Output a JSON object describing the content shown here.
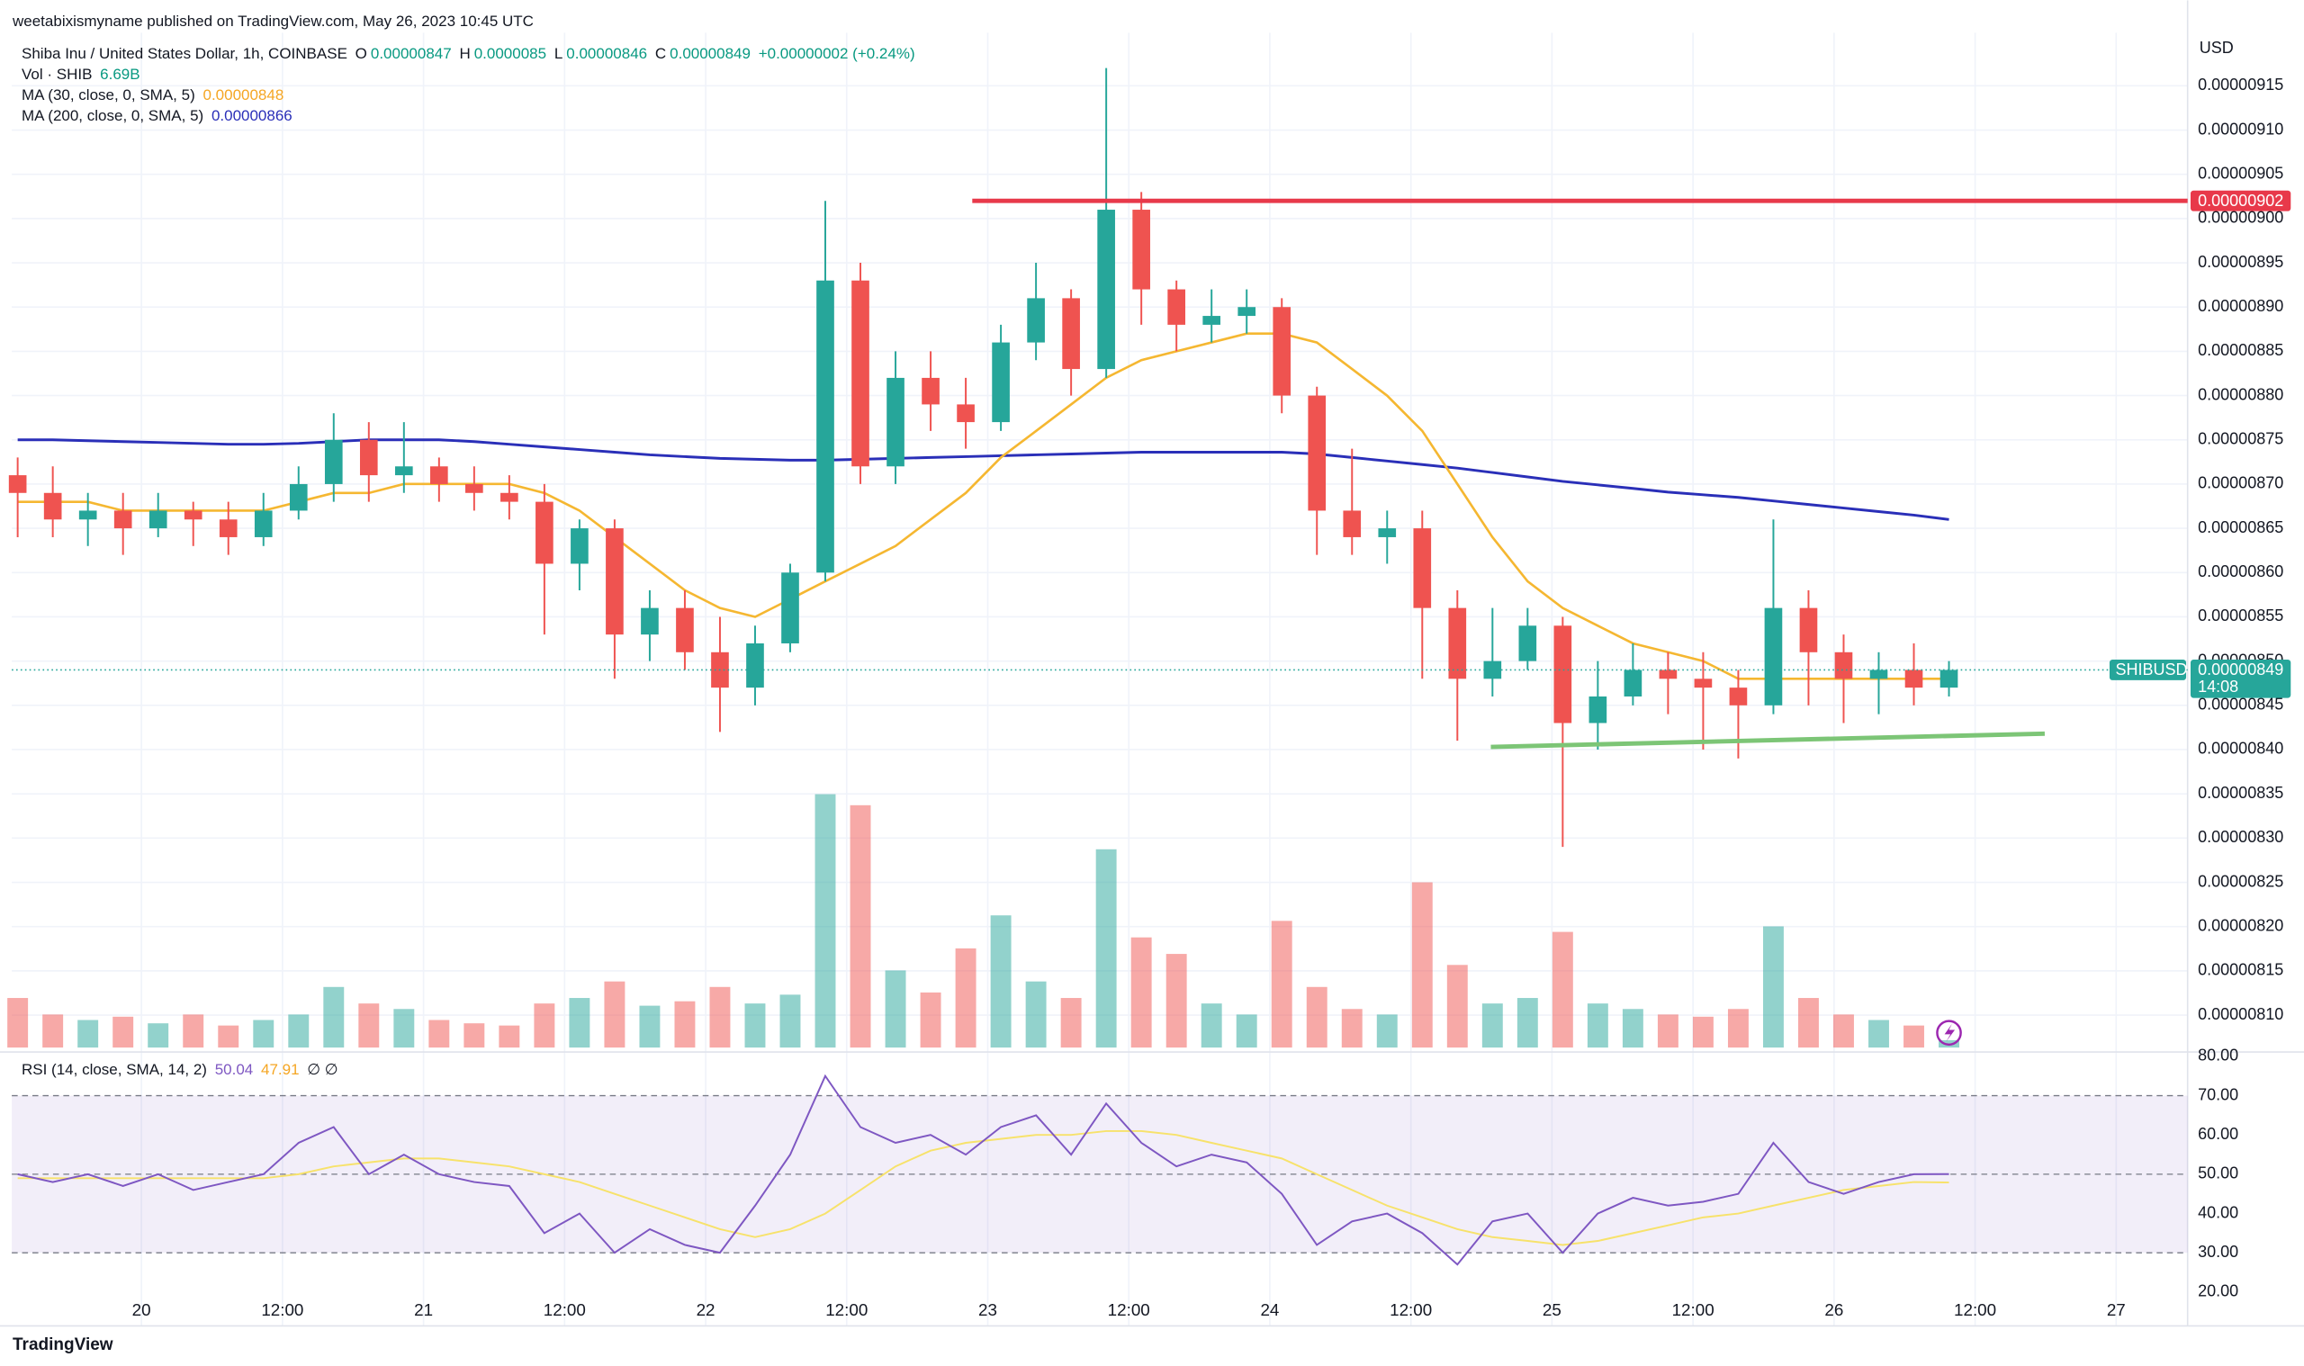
{
  "chart_data": {
    "type": "candlestick",
    "published": "weetabixismyname published on TradingView.com, May 26, 2023 10:45 UTC",
    "title": "Shiba Inu / United States Dollar, 1h, COINBASE",
    "ohlc_labels": [
      "O",
      "H",
      "L",
      "C"
    ],
    "change": "+0.00000002 (+0.24%)",
    "currency": "USD",
    "symbol": "SHIBUSD",
    "countdown": "14:08",
    "logo": "TradingView",
    "colors": {
      "up": "#26a69a",
      "down": "#ef5350",
      "ma30": "#f5b731",
      "ma200": "#2a2fb8",
      "rsi": "#7e57c2",
      "rsi_ma": "#f7e26b",
      "resistance": "#e8394a",
      "support": "#7cc576"
    },
    "candles": [
      [
        8.71e-06,
        8.73e-06,
        8.64e-06,
        8.69e-06
      ],
      [
        8.69e-06,
        8.72e-06,
        8.64e-06,
        8.66e-06
      ],
      [
        8.66e-06,
        8.69e-06,
        8.63e-06,
        8.67e-06
      ],
      [
        8.67e-06,
        8.69e-06,
        8.62e-06,
        8.65e-06
      ],
      [
        8.65e-06,
        8.69e-06,
        8.64e-06,
        8.67e-06
      ],
      [
        8.67e-06,
        8.68e-06,
        8.63e-06,
        8.66e-06
      ],
      [
        8.66e-06,
        8.68e-06,
        8.62e-06,
        8.64e-06
      ],
      [
        8.64e-06,
        8.69e-06,
        8.63e-06,
        8.67e-06
      ],
      [
        8.67e-06,
        8.72e-06,
        8.66e-06,
        8.7e-06
      ],
      [
        8.7e-06,
        8.78e-06,
        8.68e-06,
        8.75e-06
      ],
      [
        8.75e-06,
        8.77e-06,
        8.68e-06,
        8.71e-06
      ],
      [
        8.71e-06,
        8.77e-06,
        8.69e-06,
        8.72e-06
      ],
      [
        8.72e-06,
        8.73e-06,
        8.68e-06,
        8.7e-06
      ],
      [
        8.7e-06,
        8.72e-06,
        8.67e-06,
        8.69e-06
      ],
      [
        8.69e-06,
        8.71e-06,
        8.66e-06,
        8.68e-06
      ],
      [
        8.68e-06,
        8.7e-06,
        8.53e-06,
        8.61e-06
      ],
      [
        8.61e-06,
        8.66e-06,
        8.58e-06,
        8.65e-06
      ],
      [
        8.65e-06,
        8.66e-06,
        8.48e-06,
        8.53e-06
      ],
      [
        8.53e-06,
        8.58e-06,
        8.5e-06,
        8.56e-06
      ],
      [
        8.56e-06,
        8.58e-06,
        8.49e-06,
        8.51e-06
      ],
      [
        8.51e-06,
        8.55e-06,
        8.42e-06,
        8.47e-06
      ],
      [
        8.47e-06,
        8.54e-06,
        8.45e-06,
        8.52e-06
      ],
      [
        8.52e-06,
        8.61e-06,
        8.51e-06,
        8.6e-06
      ],
      [
        8.6e-06,
        9.02e-06,
        8.59e-06,
        8.93e-06
      ],
      [
        8.93e-06,
        8.95e-06,
        8.7e-06,
        8.72e-06
      ],
      [
        8.72e-06,
        8.85e-06,
        8.7e-06,
        8.82e-06
      ],
      [
        8.82e-06,
        8.85e-06,
        8.76e-06,
        8.79e-06
      ],
      [
        8.79e-06,
        8.82e-06,
        8.74e-06,
        8.77e-06
      ],
      [
        8.77e-06,
        8.88e-06,
        8.76e-06,
        8.86e-06
      ],
      [
        8.86e-06,
        8.95e-06,
        8.84e-06,
        8.91e-06
      ],
      [
        8.91e-06,
        8.92e-06,
        8.8e-06,
        8.83e-06
      ],
      [
        8.83e-06,
        9.17e-06,
        8.82e-06,
        9.01e-06
      ],
      [
        9.01e-06,
        9.03e-06,
        8.88e-06,
        8.92e-06
      ],
      [
        8.92e-06,
        8.93e-06,
        8.85e-06,
        8.88e-06
      ],
      [
        8.88e-06,
        8.92e-06,
        8.86e-06,
        8.89e-06
      ],
      [
        8.89e-06,
        8.92e-06,
        8.87e-06,
        8.9e-06
      ],
      [
        8.9e-06,
        8.91e-06,
        8.78e-06,
        8.8e-06
      ],
      [
        8.8e-06,
        8.81e-06,
        8.62e-06,
        8.67e-06
      ],
      [
        8.67e-06,
        8.74e-06,
        8.62e-06,
        8.64e-06
      ],
      [
        8.64e-06,
        8.67e-06,
        8.61e-06,
        8.65e-06
      ],
      [
        8.65e-06,
        8.67e-06,
        8.48e-06,
        8.56e-06
      ],
      [
        8.56e-06,
        8.58e-06,
        8.41e-06,
        8.48e-06
      ],
      [
        8.48e-06,
        8.56e-06,
        8.46e-06,
        8.5e-06
      ],
      [
        8.5e-06,
        8.56e-06,
        8.49e-06,
        8.54e-06
      ],
      [
        8.54e-06,
        8.55e-06,
        8.29e-06,
        8.43e-06
      ],
      [
        8.43e-06,
        8.5e-06,
        8.4e-06,
        8.46e-06
      ],
      [
        8.46e-06,
        8.52e-06,
        8.45e-06,
        8.49e-06
      ],
      [
        8.49e-06,
        8.51e-06,
        8.44e-06,
        8.48e-06
      ],
      [
        8.48e-06,
        8.51e-06,
        8.4e-06,
        8.47e-06
      ],
      [
        8.47e-06,
        8.49e-06,
        8.39e-06,
        8.45e-06
      ],
      [
        8.45e-06,
        8.66e-06,
        8.44e-06,
        8.56e-06
      ],
      [
        8.56e-06,
        8.58e-06,
        8.45e-06,
        8.51e-06
      ],
      [
        8.51e-06,
        8.53e-06,
        8.43e-06,
        8.48e-06
      ],
      [
        8.48e-06,
        8.51e-06,
        8.44e-06,
        8.49e-06
      ],
      [
        8.49e-06,
        8.52e-06,
        8.45e-06,
        8.47e-06
      ],
      [
        8.47e-06,
        8.5e-06,
        8.46e-06,
        8.49e-06
      ]
    ],
    "volume": {
      "name": "Vol · SHIB",
      "values": [
        45,
        30,
        25,
        28,
        22,
        30,
        20,
        25,
        30,
        55,
        40,
        35,
        25,
        22,
        20,
        40,
        45,
        60,
        38,
        42,
        55,
        40,
        48,
        230,
        220,
        70,
        50,
        90,
        120,
        60,
        45,
        180,
        100,
        85,
        40,
        30,
        115,
        55,
        35,
        30,
        150,
        75,
        40,
        45,
        105,
        40,
        35,
        30,
        28,
        35,
        110,
        45,
        30,
        25,
        20,
        6.69
      ],
      "value_labels": {
        "55": "6.69B"
      }
    },
    "ma30": {
      "name": "MA (30, close, 0, SMA, 5)",
      "values": [
        8.68e-06,
        8.68e-06,
        8.68e-06,
        8.67e-06,
        8.67e-06,
        8.67e-06,
        8.67e-06,
        8.67e-06,
        8.68e-06,
        8.69e-06,
        8.69e-06,
        8.7e-06,
        8.7e-06,
        8.7e-06,
        8.7e-06,
        8.69e-06,
        8.67e-06,
        8.64e-06,
        8.61e-06,
        8.58e-06,
        8.56e-06,
        8.55e-06,
        8.57e-06,
        8.59e-06,
        8.61e-06,
        8.63e-06,
        8.66e-06,
        8.69e-06,
        8.73e-06,
        8.76e-06,
        8.79e-06,
        8.82e-06,
        8.84e-06,
        8.85e-06,
        8.86e-06,
        8.87e-06,
        8.87e-06,
        8.86e-06,
        8.83e-06,
        8.8e-06,
        8.76e-06,
        8.7e-06,
        8.64e-06,
        8.59e-06,
        8.56e-06,
        8.54e-06,
        8.52e-06,
        8.51e-06,
        8.5e-06,
        8.48e-06,
        8.48e-06,
        8.48e-06,
        8.48e-06,
        8.48e-06,
        8.48e-06,
        8.48e-06
      ]
    },
    "ma200": {
      "name": "MA (200, close, 0, SMA, 5)",
      "values": [
        8.75e-06,
        8.75e-06,
        8.749e-06,
        8.748e-06,
        8.747e-06,
        8.746e-06,
        8.745e-06,
        8.745e-06,
        8.746e-06,
        8.748e-06,
        8.75e-06,
        8.75e-06,
        8.75e-06,
        8.748e-06,
        8.745e-06,
        8.742e-06,
        8.739e-06,
        8.736e-06,
        8.733e-06,
        8.731e-06,
        8.729e-06,
        8.728e-06,
        8.727e-06,
        8.727e-06,
        8.728e-06,
        8.729e-06,
        8.73e-06,
        8.731e-06,
        8.732e-06,
        8.733e-06,
        8.734e-06,
        8.735e-06,
        8.736e-06,
        8.736e-06,
        8.736e-06,
        8.736e-06,
        8.736e-06,
        8.734e-06,
        8.73e-06,
        8.726e-06,
        8.722e-06,
        8.718e-06,
        8.713e-06,
        8.708e-06,
        8.703e-06,
        8.699e-06,
        8.695e-06,
        8.691e-06,
        8.688e-06,
        8.685e-06,
        8.681e-06,
        8.677e-06,
        8.673e-06,
        8.669e-06,
        8.665e-06,
        8.66e-06
      ]
    },
    "resistance": 9.02e-06,
    "support": [
      8.403e-06,
      8.418e-06
    ],
    "ylim": [
      8.06e-06,
      9.21e-06
    ],
    "yticks": [
      {
        "value": 8.1e-06,
        "label": "0.00000810"
      },
      8.15e-06,
      {
        "value": 8.2e-06,
        "label": "0.00000820"
      },
      8.25e-06,
      {
        "value": 8.3e-06,
        "label": "0.00000830"
      },
      8.35e-06,
      {
        "value": 8.4e-06,
        "label": "0.00000840"
      },
      8.45e-06,
      {
        "value": 8.5e-06,
        "label": "0.00000850"
      },
      8.55e-06,
      {
        "value": 8.6e-06,
        "label": "0.00000860"
      },
      8.65e-06,
      {
        "value": 8.7e-06,
        "label": "0.00000870"
      },
      8.75e-06,
      {
        "value": 8.8e-06,
        "label": "0.00000880"
      },
      8.85e-06,
      {
        "value": 8.9e-06,
        "label": "0.00000890"
      },
      8.95e-06,
      {
        "value": 9e-06,
        "label": "0.00000900"
      },
      9.05e-06,
      {
        "value": 9.1e-06,
        "label": "0.00000910"
      },
      9.15e-06
    ],
    "xticks": [
      "20",
      "12:00",
      "21",
      "12:00",
      "22",
      "12:00",
      "23",
      "12:00",
      "24",
      "12:00",
      "25",
      "12:00",
      "26",
      "12:00",
      "27"
    ],
    "rsi": {
      "name": "RSI (14, close, SMA, 14, 2)",
      "extra": "∅ ∅",
      "values": [
        50,
        48,
        50,
        47,
        50,
        46,
        48,
        50,
        58,
        62,
        50,
        55,
        50,
        48,
        47,
        35,
        40,
        30,
        36,
        32,
        30,
        42,
        55,
        75,
        62,
        58,
        60,
        55,
        62,
        65,
        55,
        68,
        58,
        52,
        55,
        53,
        45,
        32,
        38,
        40,
        35,
        27,
        38,
        40,
        30,
        40,
        44,
        42,
        43,
        45,
        58,
        48,
        45,
        48,
        50,
        50.04
      ],
      "ma_values": [
        49,
        49,
        49,
        49,
        49,
        49,
        49,
        49,
        50,
        52,
        53,
        54,
        54,
        53,
        52,
        50,
        48,
        45,
        42,
        39,
        36,
        34,
        36,
        40,
        46,
        52,
        56,
        58,
        59,
        60,
        60,
        61,
        61,
        60,
        58,
        56,
        54,
        50,
        46,
        42,
        39,
        36,
        34,
        33,
        32,
        33,
        35,
        37,
        39,
        40,
        42,
        44,
        46,
        47,
        48,
        47.91
      ],
      "ylim": [
        20,
        80
      ],
      "band": [
        30,
        70
      ],
      "midline": 50,
      "yticks": [
        {
          "value": 20,
          "label": "20.00"
        },
        {
          "value": 30,
          "label": "30.00"
        },
        {
          "value": 40,
          "label": "40.00"
        },
        {
          "value": 50,
          "label": "50.00"
        },
        {
          "value": 60,
          "label": "60.00"
        },
        {
          "value": 70,
          "label": "70.00"
        },
        {
          "value": 80,
          "label": "80.00"
        }
      ]
    },
    "grid": true
  }
}
